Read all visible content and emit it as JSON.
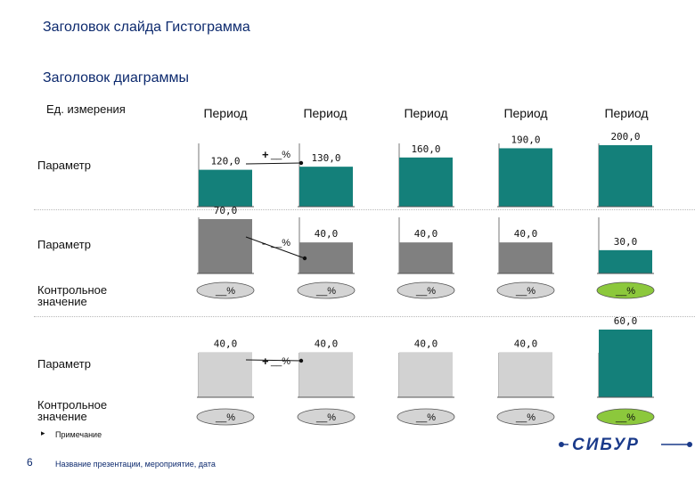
{
  "slide_title": "Заголовок слайда Гистограмма",
  "chart_title": "Заголовок диаграммы",
  "unit_label": "Ед. измерения",
  "periods": [
    "Период",
    "Период",
    "Период",
    "Период",
    "Период"
  ],
  "rows": [
    {
      "label": "Параметр",
      "label2": ""
    },
    {
      "label": "Параметр",
      "label2": ""
    },
    {
      "label": "Контрольное",
      "label2": "значение"
    },
    {
      "label": "Параметр",
      "label2": ""
    },
    {
      "label": "Контрольное",
      "label2": "значение"
    }
  ],
  "colors": {
    "teal": "#14807a",
    "gray_dark": "#808080",
    "gray_light": "#d2d2d2",
    "badge_gray": "#d4d4d4",
    "badge_green": "#8cc83c",
    "title_blue": "#0d2a6e"
  },
  "chart_data": {
    "type": "bar",
    "categories": [
      "Период",
      "Период",
      "Период",
      "Период",
      "Период"
    ],
    "panels": [
      {
        "values": [
          120.0,
          130.0,
          160.0,
          190.0,
          200.0
        ],
        "labels": [
          "120,0",
          "130,0",
          "160,0",
          "190,0",
          "200,0"
        ],
        "colors": [
          "teal",
          "teal",
          "teal",
          "teal",
          "teal"
        ],
        "change_label": "__%",
        "change_sign": "+",
        "ylim": [
          0,
          200
        ]
      },
      {
        "values": [
          70.0,
          40.0,
          40.0,
          40.0,
          30.0
        ],
        "labels": [
          "70,0",
          "40,0",
          "40,0",
          "40,0",
          "30,0"
        ],
        "colors": [
          "gray_dark",
          "gray_dark",
          "gray_dark",
          "gray_dark",
          "teal"
        ],
        "change_label": "__%",
        "change_sign": "-",
        "ylim": [
          0,
          70
        ],
        "control": [
          "__%",
          "__%",
          "__%",
          "__%",
          "__%"
        ],
        "control_colors": [
          "badge_gray",
          "badge_gray",
          "badge_gray",
          "badge_gray",
          "badge_green"
        ]
      },
      {
        "values": [
          40.0,
          40.0,
          40.0,
          40.0,
          60.0
        ],
        "labels": [
          "40,0",
          "40,0",
          "40,0",
          "40,0",
          "60,0"
        ],
        "colors": [
          "gray_light",
          "gray_light",
          "gray_light",
          "gray_light",
          "teal"
        ],
        "change_label": "__%",
        "change_sign": "+",
        "ylim": [
          0,
          60
        ],
        "control": [
          "__%",
          "__%",
          "__%",
          "__%",
          "__%"
        ],
        "control_colors": [
          "badge_gray",
          "badge_gray",
          "badge_gray",
          "badge_gray",
          "badge_green"
        ]
      }
    ]
  },
  "note": "Примечание",
  "bullet": "▸",
  "page_number": "6",
  "footer": "Название презентации, мероприятие, дата",
  "logo": "СИБУР"
}
